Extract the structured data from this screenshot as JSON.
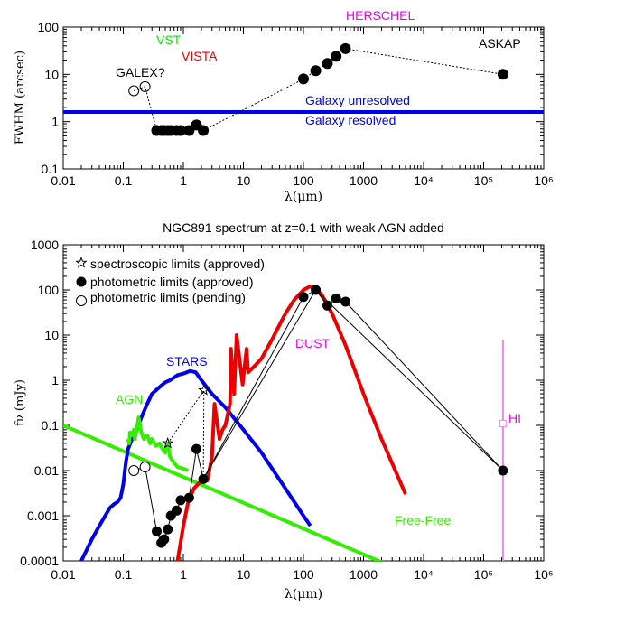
{
  "colors": {
    "vst": "#00ee00",
    "vista": "#ee0000",
    "herschel": "#ee00ee",
    "resolution_line": "#0000ee",
    "agn": "#33ee00",
    "stars": "#0000ee",
    "dust": "#ee0000",
    "hi": "#ee88ee",
    "free_free": "#33ee00"
  },
  "chart_data": [
    {
      "type": "scatter",
      "xscale": "log",
      "yscale": "log",
      "xlim": [
        0.01,
        1000000
      ],
      "ylim": [
        0.1,
        100
      ],
      "xlabel": "λ(μm)",
      "ylabel": "FWHM (arcsec)",
      "x_tick_labels": [
        "0.01",
        "0.1",
        "1",
        "10",
        "100",
        "1000",
        "10⁴",
        "10⁵",
        "10⁶"
      ],
      "y_tick_labels": [
        "0.1",
        "1",
        "10",
        "100"
      ],
      "resolution_limit": 1.6,
      "annotations": [
        {
          "text": "HERSCHEL",
          "color": "herschel"
        },
        {
          "text": "VST",
          "color": "vst"
        },
        {
          "text": "VISTA",
          "color": "vista"
        },
        {
          "text": "GALEX?",
          "color": "black"
        },
        {
          "text": "ASKAP",
          "color": "black"
        },
        {
          "text": "Galaxy unresolved",
          "color": "resolution_line"
        },
        {
          "text": "Galaxy resolved",
          "color": "resolution_line"
        }
      ],
      "series": [
        {
          "group": "GALEX",
          "filled": false,
          "x": [
            0.15,
            0.23
          ],
          "y": [
            4.5,
            5.5
          ]
        },
        {
          "group": "optical-nir",
          "filled": true,
          "x": [
            0.36,
            0.43,
            0.48,
            0.55,
            0.62,
            0.77,
            0.9,
            1.25,
            1.65,
            2.15
          ],
          "y": [
            0.65,
            0.65,
            0.65,
            0.65,
            0.65,
            0.65,
            0.65,
            0.65,
            0.85,
            0.65
          ]
        },
        {
          "group": "HERSCHEL",
          "filled": true,
          "x": [
            100,
            160,
            250,
            350,
            500
          ],
          "y": [
            8,
            12,
            17,
            24,
            35
          ]
        },
        {
          "group": "ASKAP",
          "filled": true,
          "x": [
            210000
          ],
          "y": [
            10
          ]
        }
      ]
    },
    {
      "type": "line",
      "title": "NGC891 spectrum at z=0.1 with weak AGN added",
      "xscale": "log",
      "yscale": "log",
      "xlim": [
        0.01,
        1000000
      ],
      "ylim": [
        0.0001,
        1000
      ],
      "xlabel": "λ(μm)",
      "ylabel": "fν (mJy)",
      "x_tick_labels": [
        "0.01",
        "0.1",
        "1",
        "10",
        "100",
        "1000",
        "10⁴",
        "10⁵",
        "10⁶"
      ],
      "y_tick_labels": [
        "0.0001",
        "0.001",
        "0.01",
        "0.1",
        "1",
        "10",
        "100",
        "1000"
      ],
      "legend": {
        "position": "top-left",
        "entries": [
          {
            "marker": "star",
            "label": "spectroscopic limits (approved)"
          },
          {
            "marker": "filled-circle",
            "label": "photometric limits (approved)"
          },
          {
            "marker": "open-circle",
            "label": "photometric limits (pending)"
          }
        ]
      },
      "annotations": [
        {
          "text": "STARS",
          "color": "stars"
        },
        {
          "text": "AGN",
          "color": "agn"
        },
        {
          "text": "DUST",
          "color": "herschel"
        },
        {
          "text": "HI",
          "color": "herschel"
        },
        {
          "text": "Free-Free",
          "color": "free_free"
        }
      ],
      "series": [
        {
          "name": "STARS",
          "color": "stars",
          "x": [
            0.02,
            0.03,
            0.04,
            0.05,
            0.06,
            0.07,
            0.08,
            0.09,
            0.1,
            0.11,
            0.12,
            0.14,
            0.16,
            0.18,
            0.2,
            0.25,
            0.3,
            0.35,
            0.4,
            0.5,
            0.6,
            0.8,
            1.0,
            1.3,
            1.6,
            2.0,
            3.0,
            5.0,
            10,
            20,
            50,
            100,
            130
          ],
          "y": [
            0.0001,
            0.0003,
            0.0006,
            0.001,
            0.0015,
            0.0018,
            0.002,
            0.0025,
            0.005,
            0.015,
            0.03,
            0.05,
            0.07,
            0.1,
            0.15,
            0.3,
            0.5,
            0.6,
            0.7,
            0.9,
            1.0,
            1.3,
            1.4,
            1.6,
            1.5,
            1.0,
            0.5,
            0.25,
            0.08,
            0.025,
            0.004,
            0.001,
            0.0006
          ]
        },
        {
          "name": "AGN",
          "color": "agn",
          "x": [
            0.12,
            0.125,
            0.13,
            0.14,
            0.15,
            0.155,
            0.16,
            0.18,
            0.2,
            0.22,
            0.25,
            0.28,
            0.3,
            0.35,
            0.4,
            0.45,
            0.5,
            0.55,
            0.6,
            0.7,
            0.8,
            1.0,
            1.2
          ],
          "y": [
            0.05,
            0.04,
            0.07,
            0.06,
            0.08,
            0.05,
            0.06,
            0.15,
            0.07,
            0.05,
            0.06,
            0.04,
            0.05,
            0.035,
            0.04,
            0.03,
            0.025,
            0.04,
            0.02,
            0.015,
            0.012,
            0.011,
            0.01
          ]
        },
        {
          "name": "Free-Free",
          "color": "free_free",
          "x": [
            0.01,
            100000
          ],
          "y": [
            0.1,
            1e-05
          ]
        },
        {
          "name": "DUST",
          "color": "dust",
          "x": [
            0.8,
            1.0,
            1.2,
            1.5,
            2.0,
            2.5,
            3.0,
            3.3,
            4.0,
            4.5,
            5.0,
            6.0,
            6.2,
            7.0,
            7.7,
            8.6,
            9.7,
            11.3,
            12.0,
            15.0,
            20,
            30,
            50,
            70,
            100,
            130,
            150,
            200,
            300,
            500,
            1000,
            2000,
            5000
          ],
          "y": [
            0.0001,
            0.0006,
            0.002,
            0.004,
            0.006,
            0.006,
            0.02,
            0.3,
            0.05,
            0.08,
            0.1,
            0.3,
            5.0,
            0.5,
            10.0,
            3.0,
            0.8,
            5.0,
            1.5,
            2.0,
            3.0,
            8.0,
            30.0,
            60.0,
            100.0,
            120.0,
            110.0,
            80.0,
            30.0,
            6.0,
            0.5,
            0.05,
            0.003
          ]
        }
      ],
      "points": {
        "spectroscopic_limits": {
          "x": [
            0.55,
            2.2
          ],
          "y": [
            0.04,
            0.6
          ]
        },
        "photometric_approved": {
          "x": [
            0.36,
            0.43,
            0.48,
            0.55,
            0.62,
            0.77,
            0.9,
            1.25,
            1.65,
            2.15,
            100,
            160,
            250,
            350,
            500,
            210000
          ],
          "y": [
            0.00045,
            0.00025,
            0.0003,
            0.0005,
            0.001,
            0.0013,
            0.0022,
            0.0025,
            0.03,
            0.0065,
            70,
            100,
            45,
            65,
            55,
            0.01
          ]
        },
        "photometric_pending": {
          "x": [
            0.15,
            0.23
          ],
          "y": [
            0.01,
            0.012
          ]
        },
        "hi": {
          "x": 210000,
          "y": 0.11,
          "ylow": 0.0001,
          "yhigh": 8
        }
      }
    }
  ]
}
